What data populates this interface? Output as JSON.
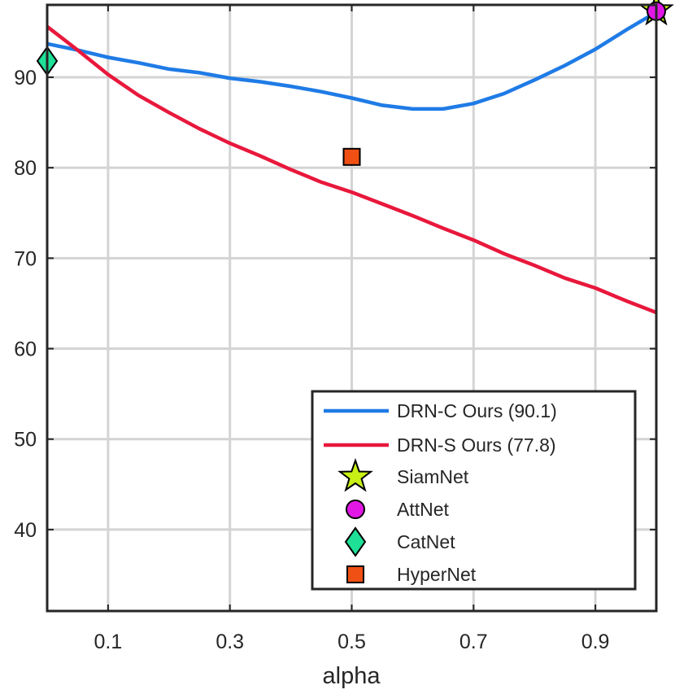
{
  "chart_data": {
    "type": "line",
    "title": "",
    "xlabel": "alpha",
    "ylabel": "",
    "xlim": [
      0,
      1
    ],
    "ylim": [
      31,
      98
    ],
    "xticks": [
      0.1,
      0.3,
      0.5,
      0.7,
      0.9
    ],
    "xtick_labels": [
      "0.1",
      "0.3",
      "0.5",
      "0.7",
      "0.9"
    ],
    "yticks": [
      40,
      50,
      60,
      70,
      80,
      90
    ],
    "ytick_labels": [
      "40",
      "50",
      "60",
      "70",
      "80",
      "90"
    ],
    "grid": true,
    "legend_position": "bottom-right",
    "series": [
      {
        "name": "DRN-C Ours (90.1)",
        "kind": "line",
        "color": "#1f7be6",
        "x": [
          0,
          0.05,
          0.1,
          0.15,
          0.2,
          0.25,
          0.3,
          0.35,
          0.4,
          0.45,
          0.5,
          0.55,
          0.6,
          0.65,
          0.7,
          0.75,
          0.8,
          0.85,
          0.9,
          0.95,
          1.0
        ],
        "y": [
          93.7,
          93.0,
          92.2,
          91.6,
          90.9,
          90.5,
          89.9,
          89.5,
          89.0,
          88.4,
          87.7,
          86.9,
          86.5,
          86.5,
          87.1,
          88.2,
          89.7,
          91.3,
          93.1,
          95.2,
          97.2
        ]
      },
      {
        "name": "DRN-S Ours (77.8)",
        "kind": "line",
        "color": "#e8183c",
        "x": [
          0,
          0.05,
          0.1,
          0.15,
          0.2,
          0.25,
          0.3,
          0.35,
          0.4,
          0.45,
          0.5,
          0.55,
          0.6,
          0.65,
          0.7,
          0.75,
          0.8,
          0.85,
          0.9,
          0.95,
          1.0
        ],
        "y": [
          95.6,
          93.0,
          90.3,
          88.0,
          86.1,
          84.3,
          82.7,
          81.3,
          79.8,
          78.4,
          77.3,
          76.0,
          74.7,
          73.3,
          72.0,
          70.5,
          69.2,
          67.8,
          66.7,
          65.3,
          64.0
        ]
      },
      {
        "name": "SiamNet",
        "kind": "marker",
        "marker": "star",
        "color": "#c8f016",
        "x": [
          1.0
        ],
        "y": [
          97.4
        ]
      },
      {
        "name": "AttNet",
        "kind": "marker",
        "marker": "circle",
        "color": "#e117e6",
        "x": [
          1.0
        ],
        "y": [
          97.3
        ]
      },
      {
        "name": "CatNet",
        "kind": "marker",
        "marker": "diamond",
        "color": "#1ee097",
        "x": [
          0
        ],
        "y": [
          91.8
        ]
      },
      {
        "name": "HyperNet",
        "kind": "marker",
        "marker": "square",
        "color": "#f05014",
        "x": [
          0.5
        ],
        "y": [
          81.2
        ]
      }
    ]
  }
}
